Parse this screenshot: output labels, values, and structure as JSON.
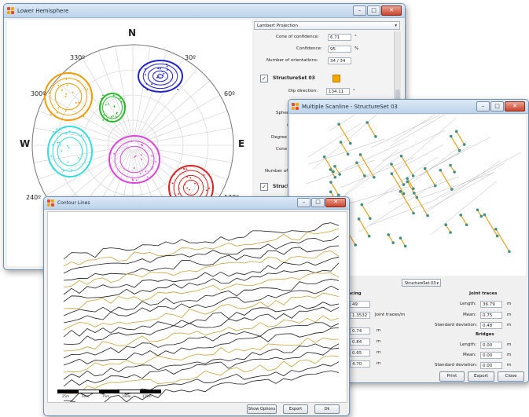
{
  "hemisphere": {
    "title": "Lower Hemisphere",
    "compass": {
      "north": "N",
      "west": "W",
      "east": "E"
    },
    "azimuths": [
      "330º",
      "30º",
      "300º",
      "60º",
      "240º",
      "120º"
    ],
    "panel": {
      "projection": "Lambert Projection",
      "cone_label": "Cone of confidence:",
      "cone_value": "6.71",
      "cone_unit": "°",
      "confidence_label": "Confidence:",
      "confidence_value": "95",
      "confidence_unit": "%",
      "orientations_label": "Number of orientations:",
      "orientations_value": "34 / 34",
      "set_name": "StructureSet 03",
      "set_color": "#f5a800",
      "dip_label": "Dip direction:",
      "dip_value": "134.11",
      "dip_unit": "°",
      "partial_labels": [
        "Spher",
        "C",
        "Degree c",
        "Cone c",
        "Number of"
      ],
      "set2_name": "Struct"
    },
    "clusters": [
      {
        "color": "#2222cc"
      },
      {
        "color": "#f29a00"
      },
      {
        "color": "#22bb22"
      },
      {
        "color": "#33dddd"
      },
      {
        "color": "#dd44dd"
      },
      {
        "color": "#dd2222"
      }
    ]
  },
  "scanline": {
    "title": "Multiple Scanline - StructureSet 03",
    "dropdown": "StructureSet 03",
    "spacing_header": "Spacing",
    "spacing_values": [
      "49",
      "1.3532",
      "0.74",
      "0.84",
      "0.65",
      "4.70"
    ],
    "spacing_unit_traces": "Joint traces/m",
    "spacing_unit": "m",
    "joint_traces_header": "Joint traces",
    "length_label": "Length:",
    "mean_label": "Mean:",
    "std_label": "Standard deviation:",
    "joint_traces": [
      "36.79",
      "0.75",
      "0.48"
    ],
    "bridges_header": "Bridges",
    "bridges": [
      "0.00",
      "0.00",
      "0.00"
    ],
    "unit": "m",
    "buttons": {
      "print": "Print",
      "export": "Export",
      "close": "Close"
    }
  },
  "contour": {
    "title": "Contour Lines",
    "scale_labels": [
      "25m",
      "50m",
      "75m",
      "100m",
      "125m"
    ],
    "buttons": {
      "show_options": "Show Options",
      "export": "Export",
      "ok": "Ok"
    }
  }
}
